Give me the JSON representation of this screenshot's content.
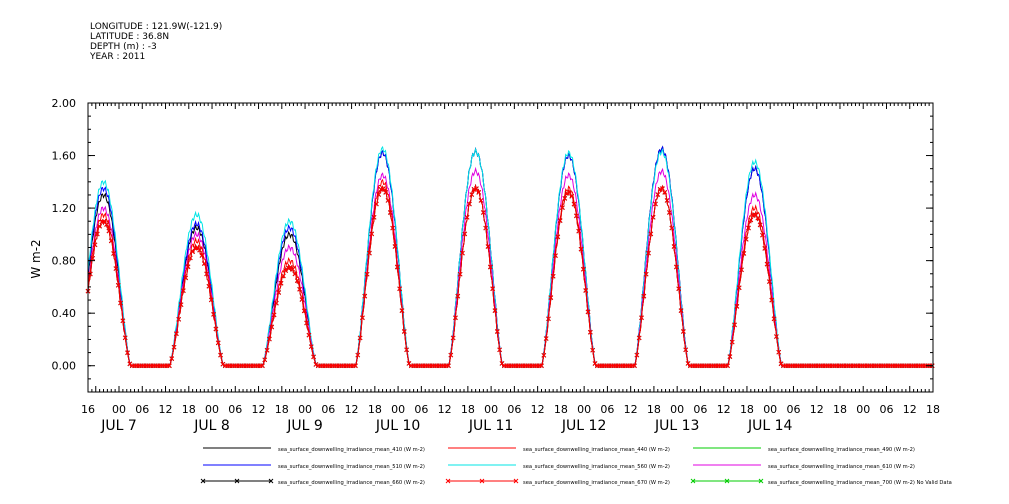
{
  "header": {
    "longitude": "LONGITUDE : 121.9W(-121.9)",
    "latitude": "LATITUDE : 36.8N",
    "depth": "DEPTH (m) : -3",
    "year": "YEAR : 2011"
  },
  "chart_data": {
    "type": "line",
    "ylabel": "W m-2",
    "ylim": [
      -0.2,
      2.0
    ],
    "y_ticks": [
      "0.00",
      "0.40",
      "0.80",
      "1.20",
      "1.60",
      "2.00"
    ],
    "y_tick_values": [
      0.0,
      0.4,
      0.8,
      1.2,
      1.6,
      2.0
    ],
    "x_hour_ticks": [
      "16",
      "00",
      "06",
      "12",
      "18",
      "00",
      "06",
      "12",
      "18",
      "00",
      "06",
      "12",
      "18",
      "00",
      "06",
      "12",
      "18",
      "00",
      "06",
      "12",
      "18",
      "00",
      "06",
      "12",
      "18",
      "00",
      "06",
      "12",
      "18",
      "00",
      "06",
      "12",
      "18",
      "00",
      "06",
      "12",
      "18"
    ],
    "x_hour_values": [
      16,
      24,
      30,
      36,
      42,
      48,
      54,
      60,
      66,
      72,
      78,
      84,
      90,
      96,
      102,
      108,
      114,
      120,
      126,
      132,
      138,
      144,
      150,
      156,
      162,
      168,
      174,
      180,
      186,
      192,
      198,
      204,
      210,
      216,
      222,
      228,
      234
    ],
    "x_day_labels": [
      "JUL  7",
      "JUL  8",
      "JUL  9",
      "JUL 10",
      "JUL 11",
      "JUL 12",
      "JUL 13",
      "JUL 14"
    ],
    "x_day_values": [
      24,
      48,
      72,
      96,
      120,
      144,
      168,
      192
    ],
    "x_unit": "hours since 2011-07-06 00:00 UTC",
    "xlim": [
      16,
      234
    ],
    "daily_peak_hour": 20,
    "daily_peaks_W_m2": {
      "410": [
        1.3,
        1.05,
        1.0,
        1.62,
        1.63,
        1.6,
        1.65,
        1.5
      ],
      "440": [
        1.15,
        0.95,
        0.8,
        1.4,
        1.35,
        1.35,
        1.35,
        1.2
      ],
      "510": [
        1.35,
        1.08,
        1.05,
        1.62,
        1.63,
        1.6,
        1.65,
        1.5
      ],
      "560": [
        1.4,
        1.15,
        1.1,
        1.65,
        1.63,
        1.62,
        1.63,
        1.55
      ],
      "610": [
        1.2,
        1.0,
        0.9,
        1.45,
        1.48,
        1.45,
        1.48,
        1.3
      ],
      "660": [
        1.1,
        0.9,
        0.75,
        1.35,
        1.35,
        1.32,
        1.35,
        1.15
      ],
      "670": [
        1.1,
        0.9,
        0.75,
        1.35,
        1.35,
        1.32,
        1.35,
        1.15
      ]
    },
    "series": [
      {
        "name": "sea_surface_downwelling_irradiance_mean_410 (W m-2)",
        "color": "#000000",
        "band": "410",
        "marker": false
      },
      {
        "name": "sea_surface_downwelling_irradiance_mean_440 (W m-2)",
        "color": "#ff0000",
        "band": "440",
        "marker": false
      },
      {
        "name": "sea_surface_downwelling_irradiance_mean_490 (W m-2)",
        "color": "#00cc00",
        "band": null,
        "marker": false
      },
      {
        "name": "sea_surface_downwelling_irradiance_mean_510 (W m-2)",
        "color": "#0000ff",
        "band": "510",
        "marker": false
      },
      {
        "name": "sea_surface_downwelling_irradiance_mean_560 (W m-2)",
        "color": "#00e5e5",
        "band": "560",
        "marker": false
      },
      {
        "name": "sea_surface_downwelling_irradiance_mean_610 (W m-2)",
        "color": "#e000e0",
        "band": "610",
        "marker": false
      },
      {
        "name": "sea_surface_downwelling_irradiance_mean_660 (W m-2)",
        "color": "#000000",
        "band": "660",
        "marker": true
      },
      {
        "name": "sea_surface_downwelling_irradiance_mean_670 (W m-2)",
        "color": "#ff0000",
        "band": "670",
        "marker": true
      },
      {
        "name": "sea_surface_downwelling_irradiance_mean_700 (W m-2) No Valid Data",
        "color": "#00cc00",
        "band": null,
        "marker": true
      }
    ],
    "grid": false,
    "legend_position": "bottom"
  }
}
